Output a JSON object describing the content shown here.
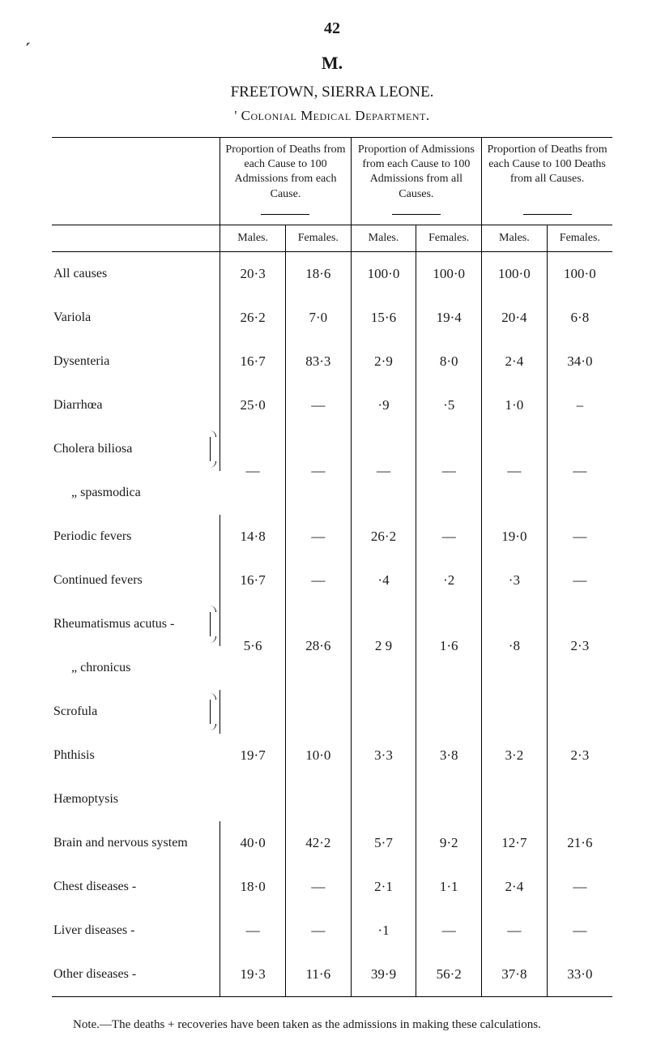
{
  "page_number": "42",
  "heading_letter": "M.",
  "place": "FREETOWN, SIERRA LEONE.",
  "department": "' Colonial Medical Department.",
  "footnote": "Note.—The deaths + recoveries have been taken as the admissions in making these calculations.",
  "column_groups": [
    "Proportion of Deaths from each Cause to 100 Admissions from each Cause.",
    "Proportion of Admissions from each Cause to 100 Admissions from all Causes.",
    "Proportion of Deaths from each Cause to 100 Deaths from all Causes."
  ],
  "subheadings": {
    "males": "Males.",
    "females": "Females."
  },
  "rows": [
    {
      "label": "All causes",
      "v": [
        "20·3",
        "18·6",
        "100·0",
        "100·0",
        "100·0",
        "100·0"
      ]
    },
    {
      "label": "Variola",
      "v": [
        "26·2",
        "7·0",
        "15·6",
        "19·4",
        "20·4",
        "6·8"
      ]
    },
    {
      "label": "Dysenteria",
      "v": [
        "16·7",
        "83·3",
        "2·9",
        "8·0",
        "2·4",
        "34·0"
      ]
    },
    {
      "label": "Diarrhœa",
      "v": [
        "25·0",
        "—",
        "·9",
        "·5",
        "1·0",
        "–"
      ]
    },
    {
      "label": "Cholera biliosa",
      "group_start": true
    },
    {
      "label": "„     spasmodica",
      "group_end": true,
      "v": [
        "—",
        "—",
        "—",
        "—",
        "—",
        "—"
      ]
    },
    {
      "label": "Periodic fevers",
      "v": [
        "14·8",
        "—",
        "26·2",
        "—",
        "19·0",
        "—"
      ]
    },
    {
      "label": "Continued fevers",
      "v": [
        "16·7",
        "—",
        "·4",
        "·2",
        "·3",
        "—"
      ]
    },
    {
      "label": "Rheumatismus acutus -",
      "group_start": true
    },
    {
      "label": "„       chronicus",
      "group_end": true,
      "v": [
        "5·6",
        "28·6",
        "2 9",
        "1·6",
        "·8",
        "2·3"
      ]
    },
    {
      "label": "Scrofula",
      "group_start": true
    },
    {
      "label": "Phthisis",
      "group_mid": true,
      "v": [
        "19·7",
        "10·0",
        "3·3",
        "3·8",
        "3·2",
        "2·3"
      ]
    },
    {
      "label": "Hæmoptysis",
      "group_end": true
    },
    {
      "label": "Brain and nervous system",
      "v": [
        "40·0",
        "42·2",
        "5·7",
        "9·2",
        "12·7",
        "21·6"
      ]
    },
    {
      "label": "Chest diseases -",
      "v": [
        "18·0",
        "—",
        "2·1",
        "1·1",
        "2·4",
        "—"
      ]
    },
    {
      "label": "Liver diseases -",
      "v": [
        "—",
        "—",
        "·1",
        "—",
        "—",
        "—"
      ]
    },
    {
      "label": "Other diseases -",
      "v": [
        "19·3",
        "11·6",
        "39·9",
        "56·2",
        "37·8",
        "33·0"
      ]
    }
  ]
}
